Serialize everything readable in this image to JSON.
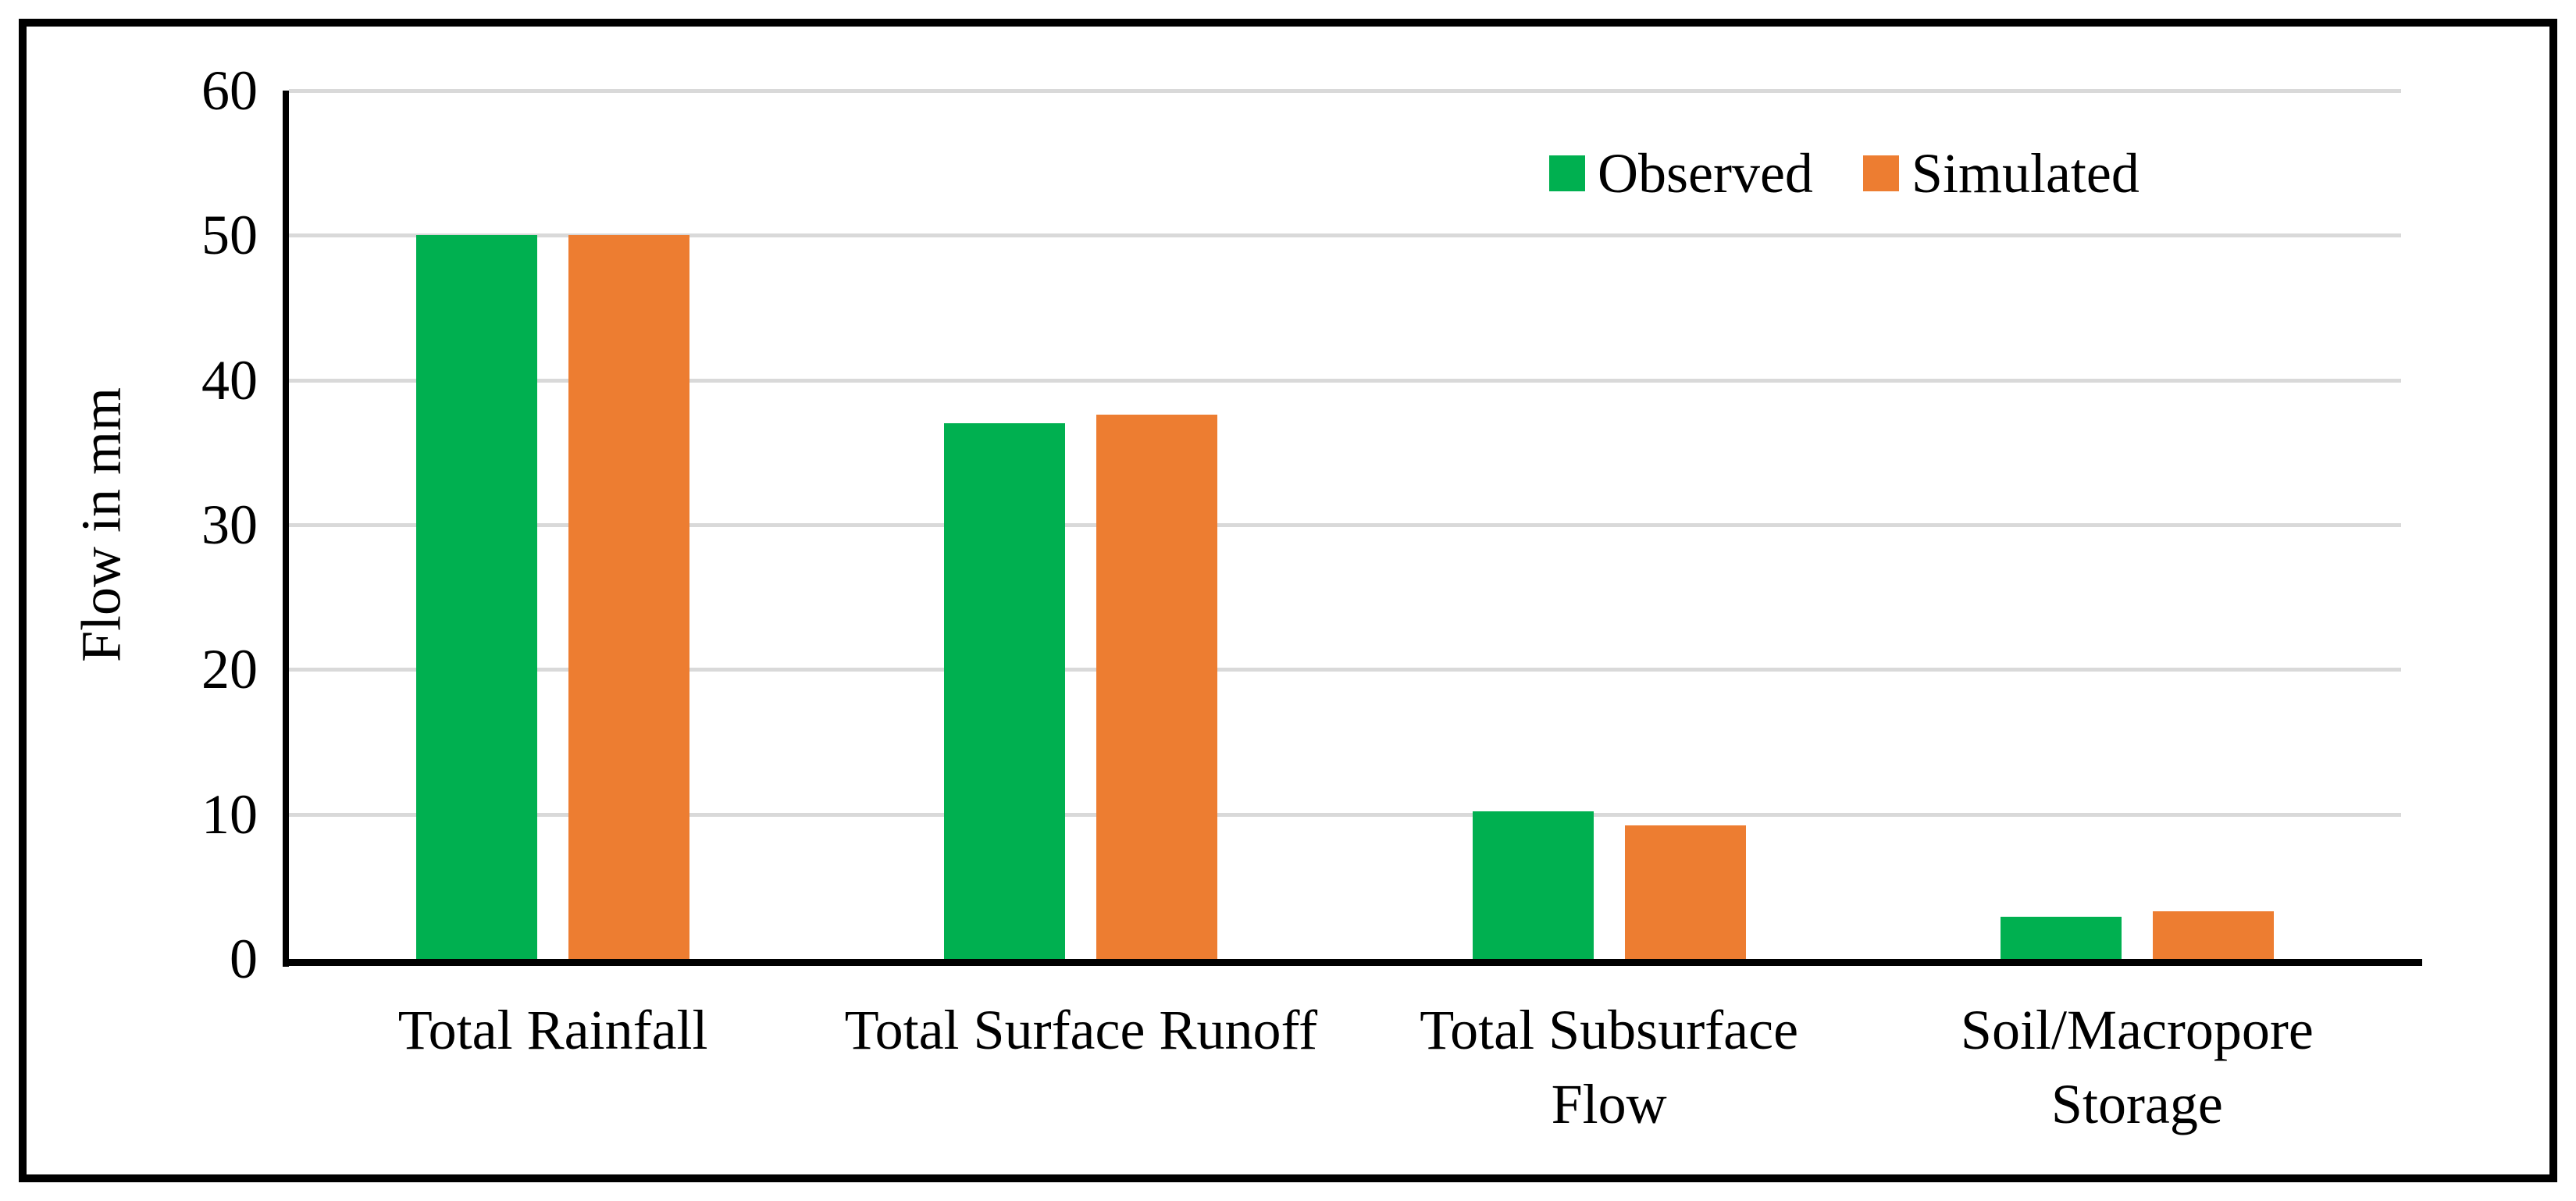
{
  "chart_data": {
    "type": "bar",
    "title": "",
    "xlabel": "",
    "ylabel": "Flow in mm",
    "ylim": [
      0,
      60
    ],
    "yticks": [
      0,
      10,
      20,
      30,
      40,
      50,
      60
    ],
    "grid": true,
    "gridline_color": "#D9D9D9",
    "axis_color": "#000000",
    "legend_position": "top-right",
    "categories": [
      "Total Rainfall",
      "Total Surface Runoff",
      "Total Subsurface Flow",
      "Soil/Macropore Storage"
    ],
    "series": [
      {
        "name": "Observed",
        "color": "#00B050",
        "values": [
          50,
          37,
          10.2,
          2.9
        ]
      },
      {
        "name": "Simulated",
        "color": "#ED7D31",
        "values": [
          50,
          37.6,
          9.2,
          3.3
        ]
      }
    ]
  }
}
